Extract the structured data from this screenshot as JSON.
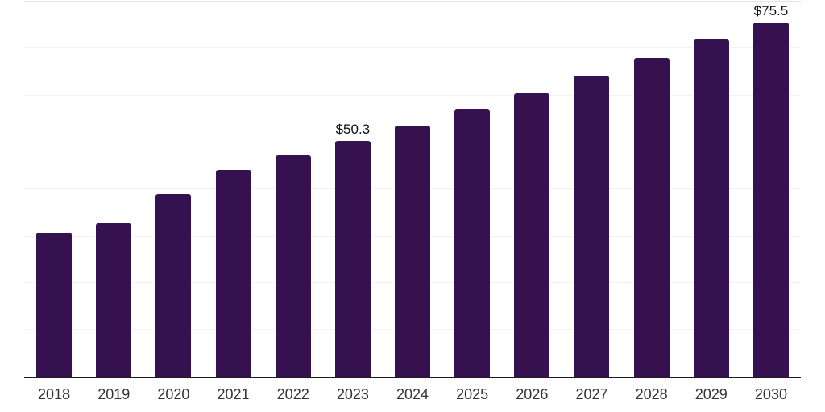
{
  "chart_data": {
    "type": "bar",
    "title": "",
    "xlabel": "",
    "ylabel": "",
    "categories": [
      "2018",
      "2019",
      "2020",
      "2021",
      "2022",
      "2023",
      "2024",
      "2025",
      "2026",
      "2027",
      "2028",
      "2029",
      "2030"
    ],
    "values": [
      30.8,
      32.8,
      39.0,
      44.2,
      47.3,
      50.3,
      53.6,
      57.1,
      60.5,
      64.2,
      68.0,
      71.9,
      75.5
    ],
    "value_labels": [
      "",
      "",
      "",
      "",
      "",
      "$50.3",
      "",
      "",
      "",
      "",
      "",
      "",
      "$75.5"
    ],
    "ylim": [
      0,
      80
    ],
    "gridline_step": 10,
    "grid": true,
    "legend": false,
    "colors": {
      "bar": "#351150",
      "axis_line": "#1e1e1e",
      "gridline": "#f2f2f2",
      "top_border": "#e3e3e3",
      "axis_label": "#333333",
      "value_label": "#0f0f0f"
    }
  }
}
